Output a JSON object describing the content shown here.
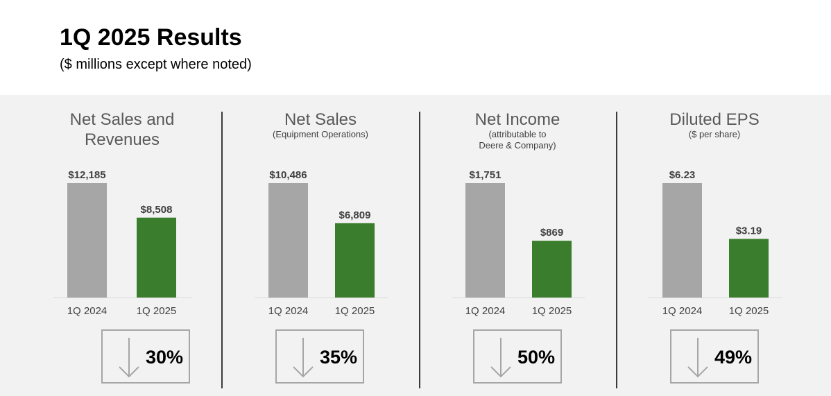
{
  "header": {
    "title": "1Q 2025 Results",
    "subtitle": "($ millions except where noted)"
  },
  "colors": {
    "prior": "#a6a6a6",
    "current": "#3a7d2c",
    "text": "#404040"
  },
  "change_icon": "down-arrow-icon",
  "chart_data": [
    {
      "type": "bar",
      "title": "Net Sales and Revenues",
      "title_lines": [
        "Net Sales and",
        "Revenues"
      ],
      "note_lines": [],
      "categories": [
        "1Q 2024",
        "1Q 2025"
      ],
      "values": [
        12185,
        8508
      ],
      "value_labels": [
        "$12,185",
        "$8,508"
      ],
      "change": "30%"
    },
    {
      "type": "bar",
      "title": "Net Sales",
      "title_lines": [
        "Net Sales"
      ],
      "note_lines": [
        "(Equipment Operations)"
      ],
      "categories": [
        "1Q 2024",
        "1Q 2025"
      ],
      "values": [
        10486,
        6809
      ],
      "value_labels": [
        "$10,486",
        "$6,809"
      ],
      "change": "35%"
    },
    {
      "type": "bar",
      "title": "Net Income",
      "title_lines": [
        "Net Income"
      ],
      "note_lines": [
        "(attributable to",
        "Deere & Company)"
      ],
      "categories": [
        "1Q 2024",
        "1Q 2025"
      ],
      "values": [
        1751,
        869
      ],
      "value_labels": [
        "$1,751",
        "$869"
      ],
      "change": "50%"
    },
    {
      "type": "bar",
      "title": "Diluted EPS",
      "title_lines": [
        "Diluted EPS"
      ],
      "note_lines": [
        "($ per share)"
      ],
      "categories": [
        "1Q 2024",
        "1Q 2025"
      ],
      "values": [
        6.23,
        3.19
      ],
      "value_labels": [
        "$6.23",
        "$3.19"
      ],
      "change": "49%"
    }
  ]
}
